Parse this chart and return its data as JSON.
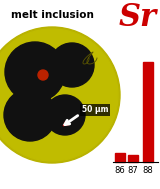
{
  "title_text": "melt inclusion",
  "sr_label": "Sr",
  "bar_categories": [
    "86",
    "87",
    "88"
  ],
  "bar_values": [
    0.09,
    0.075,
    1.0
  ],
  "bar_color": "#cc0000",
  "scale_label": "50 μm",
  "figsize": [
    1.6,
    1.89
  ],
  "dpi": 100,
  "bg_color": "#ffffff",
  "circle_bg": "#b5b500",
  "bubble_color": "#111111",
  "dot_color": "#bb2200"
}
